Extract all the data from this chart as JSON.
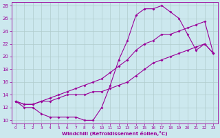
{
  "xlabel": "Windchill (Refroidissement éolien,°C)",
  "xlim": [
    -0.5,
    23.5
  ],
  "ylim": [
    9.5,
    28.5
  ],
  "yticks": [
    10,
    12,
    14,
    16,
    18,
    20,
    22,
    24,
    26,
    28
  ],
  "xticks": [
    0,
    1,
    2,
    3,
    4,
    5,
    6,
    7,
    8,
    9,
    10,
    11,
    12,
    13,
    14,
    15,
    16,
    17,
    18,
    19,
    20,
    21,
    22,
    23
  ],
  "bg_color": "#cce8ee",
  "line_color": "#990099",
  "grid_color": "#b0cccc",
  "curve1_x": [
    0,
    1,
    2,
    3,
    4,
    5,
    6,
    7,
    8,
    9,
    10,
    11,
    12,
    13,
    14,
    15,
    16,
    17,
    18,
    19,
    20,
    21,
    22,
    23
  ],
  "curve1_y": [
    13,
    12,
    12,
    11,
    10.5,
    10.5,
    10.5,
    10.5,
    10,
    10,
    12,
    15.5,
    19.5,
    22.5,
    26.5,
    27.5,
    27.5,
    28,
    27,
    26,
    23.5,
    21,
    22,
    20.5
  ],
  "curve2_x": [
    0,
    1,
    2,
    3,
    4,
    5,
    6,
    7,
    8,
    9,
    10,
    11,
    12,
    13,
    14,
    15,
    16,
    17,
    18,
    19,
    20,
    21,
    22,
    23
  ],
  "curve2_y": [
    13,
    12.5,
    12.5,
    13,
    13.5,
    14,
    14.5,
    15,
    15.5,
    16,
    16.5,
    17.5,
    18.5,
    19.5,
    21,
    22,
    22.5,
    23.5,
    23.5,
    24,
    24.5,
    25,
    25.5,
    20.5
  ],
  "curve3_x": [
    0,
    1,
    2,
    3,
    4,
    5,
    6,
    7,
    8,
    9,
    10,
    11,
    12,
    13,
    14,
    15,
    16,
    17,
    18,
    19,
    20,
    21,
    22,
    23
  ],
  "curve3_y": [
    13,
    12.5,
    12.5,
    13,
    13,
    13.5,
    14,
    14,
    14,
    14.5,
    14.5,
    15,
    15.5,
    16,
    17,
    18,
    19,
    19.5,
    20,
    20.5,
    21,
    21.5,
    22,
    20.5
  ]
}
